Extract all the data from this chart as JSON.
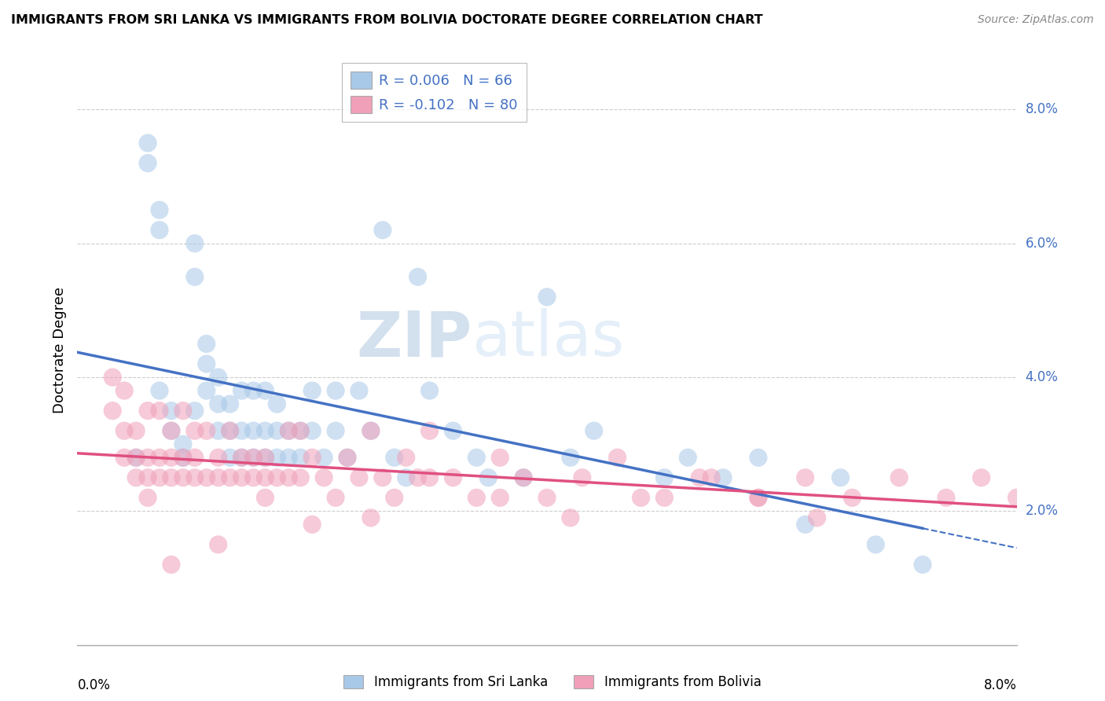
{
  "title": "IMMIGRANTS FROM SRI LANKA VS IMMIGRANTS FROM BOLIVIA DOCTORATE DEGREE CORRELATION CHART",
  "source": "Source: ZipAtlas.com",
  "ylabel": "Doctorate Degree",
  "ytick_labels": [
    "2.0%",
    "4.0%",
    "6.0%",
    "8.0%"
  ],
  "ytick_vals": [
    0.02,
    0.04,
    0.06,
    0.08
  ],
  "xlim": [
    0.0,
    0.08
  ],
  "ylim": [
    0.0,
    0.088
  ],
  "sri_lanka_color": "#a8c8e8",
  "bolivia_color": "#f0a0b8",
  "sri_lanka_line_color": "#4472c4",
  "bolivia_line_color": "#e05080",
  "legend_line1": "R = 0.006   N = 66",
  "legend_line2": "R = -0.102   N = 80",
  "watermark_zip": "ZIP",
  "watermark_atlas": "atlas",
  "bottom_legend_left": "Immigrants from Sri Lanka",
  "bottom_legend_right": "Immigrants from Bolivia",
  "sri_lanka_x": [
    0.005,
    0.006,
    0.006,
    0.007,
    0.007,
    0.007,
    0.008,
    0.008,
    0.009,
    0.009,
    0.01,
    0.01,
    0.01,
    0.011,
    0.011,
    0.011,
    0.012,
    0.012,
    0.012,
    0.013,
    0.013,
    0.013,
    0.014,
    0.014,
    0.014,
    0.015,
    0.015,
    0.015,
    0.016,
    0.016,
    0.016,
    0.017,
    0.017,
    0.017,
    0.018,
    0.018,
    0.019,
    0.019,
    0.02,
    0.02,
    0.021,
    0.022,
    0.022,
    0.023,
    0.024,
    0.025,
    0.026,
    0.027,
    0.028,
    0.029,
    0.03,
    0.032,
    0.034,
    0.035,
    0.038,
    0.04,
    0.042,
    0.044,
    0.05,
    0.052,
    0.055,
    0.058,
    0.062,
    0.065,
    0.068,
    0.072
  ],
  "sri_lanka_y": [
    0.028,
    0.072,
    0.075,
    0.062,
    0.065,
    0.038,
    0.032,
    0.035,
    0.028,
    0.03,
    0.035,
    0.055,
    0.06,
    0.042,
    0.045,
    0.038,
    0.032,
    0.036,
    0.04,
    0.028,
    0.032,
    0.036,
    0.028,
    0.032,
    0.038,
    0.028,
    0.032,
    0.038,
    0.028,
    0.032,
    0.038,
    0.028,
    0.032,
    0.036,
    0.028,
    0.032,
    0.028,
    0.032,
    0.032,
    0.038,
    0.028,
    0.032,
    0.038,
    0.028,
    0.038,
    0.032,
    0.062,
    0.028,
    0.025,
    0.055,
    0.038,
    0.032,
    0.028,
    0.025,
    0.025,
    0.052,
    0.028,
    0.032,
    0.025,
    0.028,
    0.025,
    0.028,
    0.018,
    0.025,
    0.015,
    0.012
  ],
  "bolivia_x": [
    0.003,
    0.003,
    0.004,
    0.004,
    0.004,
    0.005,
    0.005,
    0.005,
    0.006,
    0.006,
    0.006,
    0.006,
    0.007,
    0.007,
    0.007,
    0.008,
    0.008,
    0.008,
    0.009,
    0.009,
    0.009,
    0.01,
    0.01,
    0.01,
    0.011,
    0.011,
    0.012,
    0.012,
    0.013,
    0.013,
    0.014,
    0.014,
    0.015,
    0.015,
    0.016,
    0.016,
    0.017,
    0.018,
    0.018,
    0.019,
    0.019,
    0.02,
    0.021,
    0.022,
    0.023,
    0.024,
    0.025,
    0.026,
    0.027,
    0.028,
    0.029,
    0.03,
    0.032,
    0.034,
    0.036,
    0.038,
    0.04,
    0.043,
    0.046,
    0.05,
    0.054,
    0.058,
    0.062,
    0.066,
    0.07,
    0.074,
    0.077,
    0.08,
    0.063,
    0.058,
    0.053,
    0.048,
    0.042,
    0.036,
    0.03,
    0.025,
    0.02,
    0.016,
    0.012,
    0.008
  ],
  "bolivia_y": [
    0.035,
    0.04,
    0.028,
    0.032,
    0.038,
    0.025,
    0.028,
    0.032,
    0.022,
    0.025,
    0.028,
    0.035,
    0.025,
    0.028,
    0.035,
    0.025,
    0.028,
    0.032,
    0.025,
    0.028,
    0.035,
    0.025,
    0.028,
    0.032,
    0.025,
    0.032,
    0.025,
    0.028,
    0.025,
    0.032,
    0.025,
    0.028,
    0.025,
    0.028,
    0.025,
    0.028,
    0.025,
    0.025,
    0.032,
    0.025,
    0.032,
    0.028,
    0.025,
    0.022,
    0.028,
    0.025,
    0.032,
    0.025,
    0.022,
    0.028,
    0.025,
    0.032,
    0.025,
    0.022,
    0.028,
    0.025,
    0.022,
    0.025,
    0.028,
    0.022,
    0.025,
    0.022,
    0.025,
    0.022,
    0.025,
    0.022,
    0.025,
    0.022,
    0.019,
    0.022,
    0.025,
    0.022,
    0.019,
    0.022,
    0.025,
    0.019,
    0.018,
    0.022,
    0.015,
    0.012
  ]
}
